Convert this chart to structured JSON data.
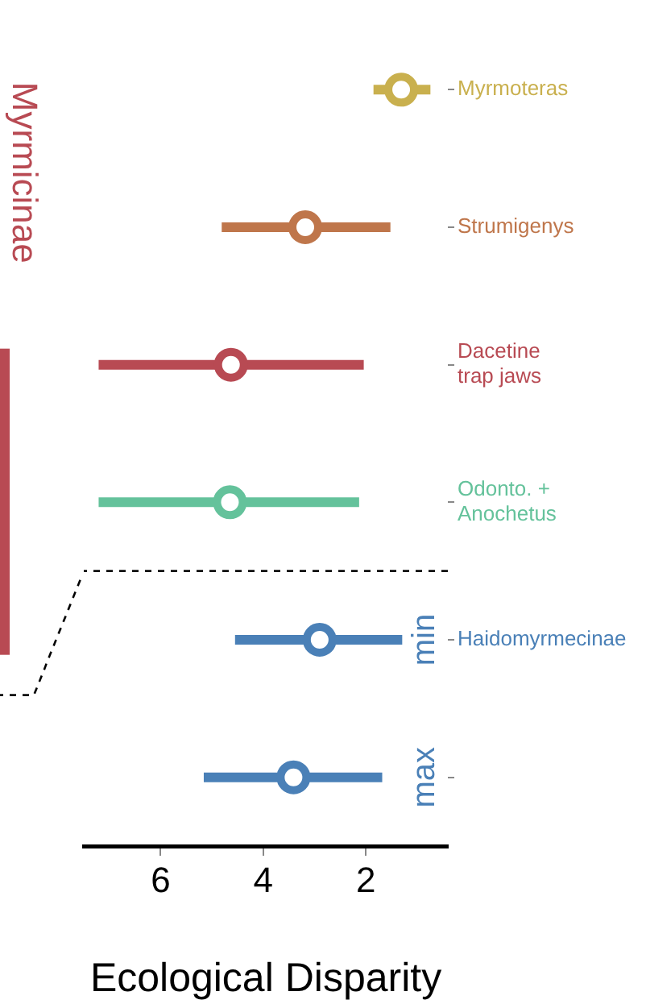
{
  "chart_data": {
    "type": "scatter",
    "orientation": "horizontal",
    "xlabel": "Ecological Disparity",
    "categories": [
      "Myrmoteras",
      "Strumigenys",
      "Dacetine trap jaws",
      "Odonto. + Anochetus",
      "Haidomyrmecinae",
      null
    ],
    "values": [
      1.31,
      3.18,
      4.63,
      4.65,
      2.9,
      3.41
    ],
    "errors": [
      [
        0.74,
        1.85
      ],
      [
        1.52,
        4.81
      ],
      [
        2.04,
        7.21
      ],
      [
        2.13,
        7.21
      ],
      [
        1.29,
        4.55
      ],
      [
        1.68,
        5.16
      ]
    ],
    "colors": [
      "#c9b04e",
      "#bf764b",
      "#b84a53",
      "#64c29b",
      "#4a80b7",
      "#4a80b7"
    ],
    "xlim": [
      7.5,
      0.4
    ],
    "xticks": [
      6,
      4,
      2
    ],
    "grid": false,
    "legend": false,
    "marker": "circle",
    "annotations": [
      "Myrmicinae",
      "min",
      "max"
    ]
  }
}
